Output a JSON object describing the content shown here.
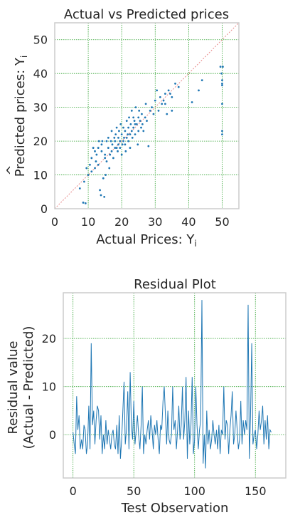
{
  "chart_data": [
    {
      "type": "scatter",
      "title": "Actual vs Predicted prices",
      "xlabel": "Actual Prices: Y",
      "xlabel_sub": "i",
      "ylabel": "Predicted prices: Y",
      "ylabel_sub": "i",
      "xlim": [
        0,
        55
      ],
      "ylim": [
        0,
        55
      ],
      "xticks": [
        0,
        10,
        20,
        30,
        40,
        50
      ],
      "yticks": [
        0,
        10,
        20,
        30,
        40,
        50
      ],
      "grid": true,
      "reference_line": "y = x",
      "colors": {
        "points": "#1f77b4",
        "reference": "#e88c8c",
        "grid": "#2ca02c",
        "frame": "#cccccc"
      },
      "points": [
        [
          7.5,
          6
        ],
        [
          8.5,
          1.8
        ],
        [
          8.8,
          8
        ],
        [
          9.2,
          1.6
        ],
        [
          9.5,
          12
        ],
        [
          10,
          10
        ],
        [
          10.5,
          13
        ],
        [
          11,
          11
        ],
        [
          11,
          15
        ],
        [
          11.5,
          18
        ],
        [
          12,
          12
        ],
        [
          12,
          17
        ],
        [
          12.3,
          14
        ],
        [
          12.5,
          16
        ],
        [
          13,
          18
        ],
        [
          13,
          13
        ],
        [
          13.2,
          20
        ],
        [
          13.5,
          5.5
        ],
        [
          13.8,
          4
        ],
        [
          14,
          17
        ],
        [
          14,
          19
        ],
        [
          14.2,
          20
        ],
        [
          14.5,
          9
        ],
        [
          14.8,
          3.5
        ],
        [
          15,
          15
        ],
        [
          15,
          16
        ],
        [
          15.2,
          10
        ],
        [
          15.5,
          14
        ],
        [
          15.5,
          20
        ],
        [
          16,
          18
        ],
        [
          16,
          21
        ],
        [
          16.3,
          12
        ],
        [
          16.5,
          16
        ],
        [
          16.8,
          20
        ],
        [
          17,
          17
        ],
        [
          17,
          23
        ],
        [
          17.2,
          19
        ],
        [
          17.5,
          15
        ],
        [
          17.8,
          21
        ],
        [
          18,
          18
        ],
        [
          18,
          20
        ],
        [
          18.2,
          22
        ],
        [
          18.5,
          24
        ],
        [
          18.5,
          18
        ],
        [
          18.8,
          17
        ],
        [
          19,
          19
        ],
        [
          19,
          21
        ],
        [
          19.2,
          23
        ],
        [
          19.5,
          20
        ],
        [
          19.5,
          18
        ],
        [
          19.7,
          25
        ],
        [
          20,
          22
        ],
        [
          20,
          16
        ],
        [
          20.2,
          19
        ],
        [
          20.5,
          20
        ],
        [
          20.5,
          24
        ],
        [
          20.7,
          21
        ],
        [
          21,
          23
        ],
        [
          21,
          19
        ],
        [
          21.2,
          17
        ],
        [
          21.5,
          26
        ],
        [
          21.5,
          21
        ],
        [
          21.8,
          22
        ],
        [
          22,
          24
        ],
        [
          22,
          20
        ],
        [
          22.2,
          27
        ],
        [
          22.5,
          22
        ],
        [
          22.5,
          18
        ],
        [
          22.7,
          25
        ],
        [
          23,
          23
        ],
        [
          23,
          29
        ],
        [
          23.2,
          21
        ],
        [
          23.5,
          24
        ],
        [
          23.5,
          27
        ],
        [
          23.8,
          26
        ],
        [
          24,
          25
        ],
        [
          24,
          22
        ],
        [
          24.2,
          30
        ],
        [
          24.5,
          25
        ],
        [
          24.8,
          19
        ],
        [
          25,
          27
        ],
        [
          25,
          23
        ],
        [
          25.2,
          29
        ],
        [
          25.5,
          26
        ],
        [
          25.8,
          24
        ],
        [
          26,
          28
        ],
        [
          26.2,
          25
        ],
        [
          26.5,
          23
        ],
        [
          27,
          27
        ],
        [
          27.2,
          31
        ],
        [
          27.5,
          26
        ],
        [
          28,
          18.5
        ],
        [
          28.5,
          29
        ],
        [
          29,
          30
        ],
        [
          29.5,
          28
        ],
        [
          30,
          32
        ],
        [
          30.5,
          35
        ],
        [
          31,
          29
        ],
        [
          31.5,
          33
        ],
        [
          32,
          31
        ],
        [
          32.5,
          32
        ],
        [
          33,
          34
        ],
        [
          33,
          31
        ],
        [
          33.5,
          28
        ],
        [
          34,
          35
        ],
        [
          34.5,
          34
        ],
        [
          35,
          33
        ],
        [
          35,
          29
        ],
        [
          36,
          37
        ],
        [
          37,
          36
        ],
        [
          41,
          31.5
        ],
        [
          43,
          35
        ],
        [
          44,
          38
        ],
        [
          49.5,
          42
        ],
        [
          49.8,
          40
        ],
        [
          50,
          38
        ],
        [
          50,
          37
        ],
        [
          50,
          36.5
        ],
        [
          50,
          31
        ],
        [
          50,
          23
        ],
        [
          50,
          22
        ],
        [
          50.2,
          42
        ]
      ]
    },
    {
      "type": "line",
      "title": "Residual Plot",
      "xlabel": "Test Observation",
      "ylabel_line1": "Residual value",
      "ylabel_line2": "(Actual - Predicted)",
      "xlim": [
        -8,
        175
      ],
      "ylim": [
        -9,
        29.5
      ],
      "xticks": [
        0,
        50,
        100,
        150
      ],
      "yticks": [
        0,
        10,
        20
      ],
      "grid": true,
      "colors": {
        "line": "#1f77b4",
        "grid": "#2ca02c",
        "frame": "#cccccc"
      },
      "y": [
        0.5,
        -2,
        -4,
        8,
        1,
        4,
        -3,
        -1,
        -3,
        2,
        1,
        -4,
        -2,
        6,
        -3,
        19,
        2,
        5,
        -2,
        3,
        6,
        5,
        -1,
        4,
        -4,
        0,
        -3,
        3,
        -2,
        1,
        -1,
        -3,
        0,
        1,
        -2,
        -3,
        2,
        -4,
        4,
        -5,
        -1,
        5,
        11,
        -2,
        1,
        9,
        -3,
        13,
        2,
        -1,
        7,
        -2,
        1,
        4,
        0,
        -3,
        2,
        10,
        -4,
        0,
        -2,
        1,
        3,
        -1,
        4,
        1,
        -3,
        2,
        0,
        3,
        -1,
        -4,
        2,
        1,
        7,
        10,
        4,
        -2,
        5,
        -1,
        -2,
        0,
        10,
        1,
        3,
        -3,
        1,
        6,
        -1,
        2,
        10,
        -1,
        3,
        12,
        -5,
        5,
        -2,
        2,
        12,
        -4,
        -1,
        10,
        2,
        -3,
        1,
        3,
        28,
        -6,
        0,
        -7,
        5,
        -2,
        1,
        -3,
        -1,
        3,
        0,
        -2,
        1,
        -3,
        2,
        -4,
        1,
        0,
        10,
        -1,
        3,
        2,
        -4,
        1,
        4,
        9,
        -2,
        0,
        5,
        1,
        -3,
        -1,
        7,
        -2,
        3,
        0,
        3,
        1,
        27,
        -5,
        4,
        19,
        -2,
        0,
        1,
        -3,
        0,
        5,
        1,
        3,
        6,
        -2,
        3,
        -1,
        4,
        -3,
        1,
        0.5
      ]
    }
  ]
}
